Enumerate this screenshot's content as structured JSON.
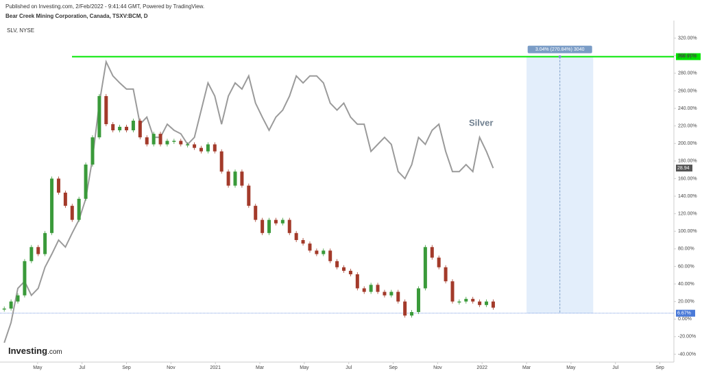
{
  "header": {
    "published": "Published on Investing.com, 2/Feb/2022 - 9:41:44 GMT, Powered by TradingView.",
    "title": "Bear Creek Mining Corporation, Canada, TSXV:BCM, D",
    "compare": "SLV, NYSE"
  },
  "logo": {
    "brand": "Investing",
    "suffix": ".com"
  },
  "chart_data": {
    "type": "candlestick",
    "ylim": [
      -49,
      340
    ],
    "yticks": [
      {
        "value": -40,
        "label": "-40.00%"
      },
      {
        "value": -20,
        "label": "-20.00%"
      },
      {
        "value": 0,
        "label": "0.00%"
      },
      {
        "value": 20,
        "label": "20.00%"
      },
      {
        "value": 40,
        "label": "40.00%"
      },
      {
        "value": 60,
        "label": "60.00%"
      },
      {
        "value": 80,
        "label": "80.00%"
      },
      {
        "value": 100,
        "label": "100.00%"
      },
      {
        "value": 120,
        "label": "120.00%"
      },
      {
        "value": 140,
        "label": "140.00%"
      },
      {
        "value": 160,
        "label": "160.00%"
      },
      {
        "value": 180,
        "label": "180.00%"
      },
      {
        "value": 200,
        "label": "200.00%"
      },
      {
        "value": 220,
        "label": "220.00%"
      },
      {
        "value": 240,
        "label": "240.00%"
      },
      {
        "value": 260,
        "label": "260.00%"
      },
      {
        "value": 280,
        "label": "280.00%"
      },
      {
        "value": 300,
        "label": "300.00%"
      },
      {
        "value": 320,
        "label": "320.00%"
      }
    ],
    "xlim": [
      "2020-03",
      "2022-10"
    ],
    "xticks": [
      {
        "value": "2020-05",
        "label": "May"
      },
      {
        "value": "2020-07",
        "label": "Jul"
      },
      {
        "value": "2020-09",
        "label": "Sep"
      },
      {
        "value": "2020-11",
        "label": "Nov"
      },
      {
        "value": "2021-01",
        "label": "2021"
      },
      {
        "value": "2021-03",
        "label": "Mar"
      },
      {
        "value": "2021-05",
        "label": "May"
      },
      {
        "value": "2021-07",
        "label": "Jul"
      },
      {
        "value": "2021-09",
        "label": "Sep"
      },
      {
        "value": "2021-11",
        "label": "Nov"
      },
      {
        "value": "2022-01",
        "label": "2022"
      },
      {
        "value": "2022-03",
        "label": "Mar"
      },
      {
        "value": "2022-05",
        "label": "May"
      },
      {
        "value": "2022-07",
        "label": "Jul"
      },
      {
        "value": "2022-09",
        "label": "Sep"
      }
    ],
    "bcm": {
      "start": "2020-03",
      "end": "2022-01",
      "up_color": "#3a9a3a",
      "down_color": "#a33a2a",
      "values": [
        12,
        20,
        27,
        66,
        82,
        74,
        98,
        160,
        144,
        129,
        113,
        137,
        176,
        207,
        254,
        222,
        215,
        219,
        215,
        226,
        207,
        199,
        211,
        199,
        203,
        203,
        199,
        199,
        195,
        191,
        199,
        191,
        168,
        152,
        168,
        152,
        129,
        113,
        98,
        113,
        109,
        113,
        98,
        90,
        86,
        78,
        74,
        78,
        66,
        59,
        55,
        51,
        35,
        31,
        39,
        31,
        27,
        31,
        20,
        4,
        8,
        35,
        82,
        70,
        59,
        43,
        20,
        20,
        23,
        20,
        16,
        20,
        13
      ]
    },
    "silver": {
      "name": "Silver",
      "color": "#9a9a9a",
      "start": "2020-03",
      "end": "2022-01",
      "last_label": "28.94",
      "values": [
        -27,
        -4,
        35,
        43,
        27,
        35,
        59,
        74,
        90,
        82,
        98,
        113,
        137,
        183,
        246,
        293,
        277,
        269,
        262,
        262,
        222,
        230,
        207,
        207,
        222,
        215,
        211,
        199,
        207,
        238,
        269,
        254,
        222,
        254,
        269,
        262,
        277,
        246,
        230,
        215,
        230,
        238,
        254,
        277,
        269,
        277,
        277,
        269,
        246,
        238,
        246,
        230,
        222,
        222,
        191,
        199,
        207,
        199,
        168,
        160,
        176,
        207,
        199,
        215,
        222,
        191,
        168,
        168,
        176,
        168,
        207,
        191,
        172
      ]
    },
    "level": {
      "value": 298.91,
      "label": "298.91%",
      "color": "#00e600"
    },
    "current": {
      "value": 6.67,
      "label": "6.67%",
      "color": "#4a7ad8"
    },
    "measure": {
      "label": "3.04% (270.84%) 3040",
      "from": "2022-03",
      "to": "2022-06"
    }
  }
}
